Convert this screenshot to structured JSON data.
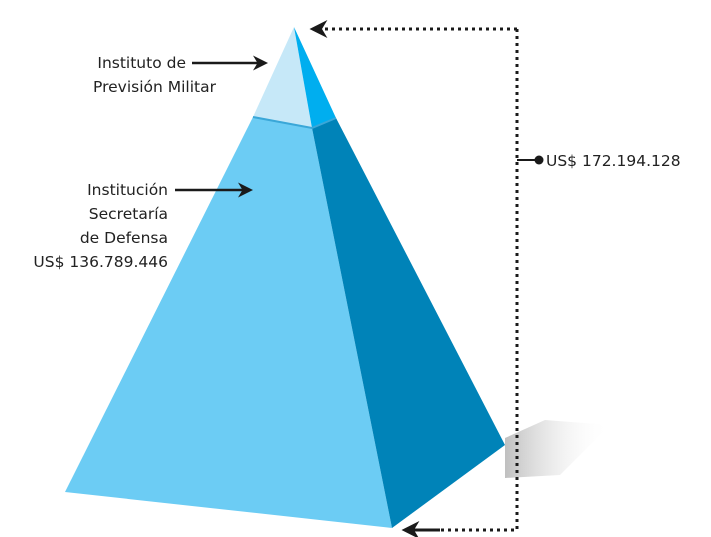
{
  "labels": {
    "apex_line1": "Instituto de",
    "apex_line2": "Previsión Militar",
    "base_line1": "Institución",
    "base_line2": "Secretaría",
    "base_line3": "de Defensa",
    "base_value": "US$ 136.789.446",
    "total_value": "US$ 172.194.128"
  },
  "colors": {
    "apex_left": "#c6e8f8",
    "apex_right": "#00aeef",
    "base_left": "#6cccf4",
    "base_right": "#0083b8",
    "arrow": "#1a1a1a",
    "shadow": "#c9c9c9"
  }
}
